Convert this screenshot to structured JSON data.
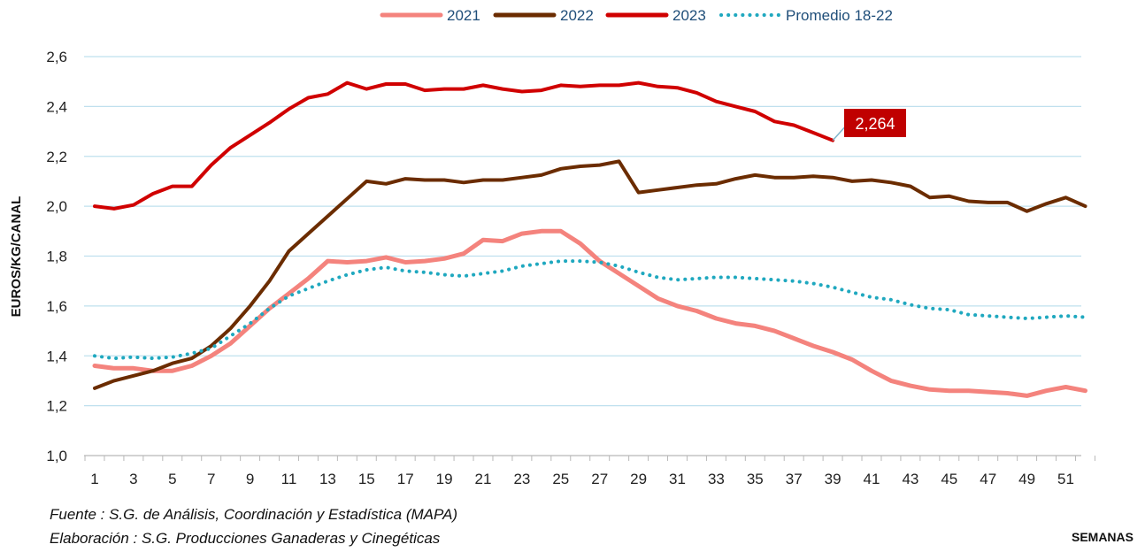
{
  "chart_data": {
    "type": "line",
    "xlabel": "SEMANAS",
    "ylabel": "EUROS/KG/CANAL",
    "ylim": [
      1.0,
      2.6
    ],
    "xlim": [
      1,
      52
    ],
    "yticks": [
      1.0,
      1.2,
      1.4,
      1.6,
      1.8,
      2.0,
      2.2,
      2.4,
      2.6
    ],
    "ytick_labels": [
      "1,0",
      "1,2",
      "1,4",
      "1,6",
      "1,8",
      "2,0",
      "2,2",
      "2,4",
      "2,6"
    ],
    "xticks": [
      1,
      3,
      5,
      7,
      9,
      11,
      13,
      15,
      17,
      19,
      21,
      23,
      25,
      27,
      29,
      31,
      33,
      35,
      37,
      39,
      41,
      43,
      45,
      47,
      49,
      51
    ],
    "grid": "horizontal",
    "legend_position": "top",
    "series": [
      {
        "name": "2021",
        "color": "#f4837d",
        "style": "solid",
        "x": [
          1,
          2,
          3,
          4,
          5,
          6,
          7,
          8,
          9,
          10,
          11,
          12,
          13,
          14,
          15,
          16,
          17,
          18,
          19,
          20,
          21,
          22,
          23,
          24,
          25,
          26,
          27,
          28,
          29,
          30,
          31,
          32,
          33,
          34,
          35,
          36,
          37,
          38,
          39,
          40,
          41,
          42,
          43,
          44,
          45,
          46,
          47,
          48,
          49,
          50,
          51,
          52
        ],
        "values": [
          1.36,
          1.35,
          1.35,
          1.34,
          1.34,
          1.36,
          1.4,
          1.45,
          1.52,
          1.59,
          1.65,
          1.71,
          1.78,
          1.775,
          1.78,
          1.795,
          1.775,
          1.78,
          1.79,
          1.81,
          1.865,
          1.86,
          1.89,
          1.9,
          1.9,
          1.85,
          1.78,
          1.73,
          1.68,
          1.63,
          1.6,
          1.58,
          1.55,
          1.53,
          1.52,
          1.5,
          1.47,
          1.44,
          1.415,
          1.385,
          1.34,
          1.3,
          1.28,
          1.265,
          1.26,
          1.26,
          1.255,
          1.25,
          1.24,
          1.26,
          1.275,
          1.26
        ]
      },
      {
        "name": "2022",
        "color": "#6b2c00",
        "style": "solid",
        "x": [
          1,
          2,
          3,
          4,
          5,
          6,
          7,
          8,
          9,
          10,
          11,
          12,
          13,
          14,
          15,
          16,
          17,
          18,
          19,
          20,
          21,
          22,
          23,
          24,
          25,
          26,
          27,
          28,
          29,
          30,
          31,
          32,
          33,
          34,
          35,
          36,
          37,
          38,
          39,
          40,
          41,
          42,
          43,
          44,
          45,
          46,
          47,
          48,
          49,
          50,
          51,
          52
        ],
        "values": [
          1.27,
          1.3,
          1.32,
          1.34,
          1.37,
          1.39,
          1.44,
          1.51,
          1.6,
          1.7,
          1.82,
          1.89,
          1.96,
          2.03,
          2.1,
          2.09,
          2.11,
          2.105,
          2.105,
          2.095,
          2.105,
          2.105,
          2.115,
          2.125,
          2.15,
          2.16,
          2.165,
          2.18,
          2.055,
          2.065,
          2.075,
          2.085,
          2.09,
          2.11,
          2.125,
          2.115,
          2.115,
          2.12,
          2.115,
          2.1,
          2.105,
          2.095,
          2.08,
          2.035,
          2.04,
          2.02,
          2.015,
          2.015,
          1.98,
          2.01,
          2.035,
          2.0
        ]
      },
      {
        "name": "2023",
        "color": "#d00000",
        "style": "solid",
        "x": [
          1,
          2,
          3,
          4,
          5,
          6,
          7,
          8,
          9,
          10,
          11,
          12,
          13,
          14,
          15,
          16,
          17,
          18,
          19,
          20,
          21,
          22,
          23,
          24,
          25,
          26,
          27,
          28,
          29,
          30,
          31,
          32,
          33,
          34,
          35,
          36,
          37,
          38,
          39
        ],
        "values": [
          2.0,
          1.99,
          2.005,
          2.05,
          2.08,
          2.08,
          2.165,
          2.235,
          2.285,
          2.335,
          2.39,
          2.435,
          2.45,
          2.495,
          2.47,
          2.49,
          2.49,
          2.465,
          2.47,
          2.47,
          2.485,
          2.47,
          2.46,
          2.465,
          2.485,
          2.48,
          2.485,
          2.485,
          2.495,
          2.48,
          2.475,
          2.455,
          2.42,
          2.4,
          2.38,
          2.34,
          2.325,
          2.295,
          2.264
        ]
      },
      {
        "name": "Promedio 18-22",
        "color": "#1fa8bf",
        "style": "dotted",
        "x": [
          1,
          2,
          3,
          4,
          5,
          6,
          7,
          8,
          9,
          10,
          11,
          12,
          13,
          14,
          15,
          16,
          17,
          18,
          19,
          20,
          21,
          22,
          23,
          24,
          25,
          26,
          27,
          28,
          29,
          30,
          31,
          32,
          33,
          34,
          35,
          36,
          37,
          38,
          39,
          40,
          41,
          42,
          43,
          44,
          45,
          46,
          47,
          48,
          49,
          50,
          51,
          52
        ],
        "values": [
          1.4,
          1.39,
          1.395,
          1.39,
          1.395,
          1.41,
          1.43,
          1.48,
          1.53,
          1.59,
          1.64,
          1.67,
          1.7,
          1.725,
          1.745,
          1.755,
          1.74,
          1.735,
          1.725,
          1.72,
          1.73,
          1.74,
          1.76,
          1.77,
          1.78,
          1.78,
          1.775,
          1.76,
          1.735,
          1.715,
          1.705,
          1.71,
          1.715,
          1.715,
          1.71,
          1.705,
          1.7,
          1.69,
          1.675,
          1.655,
          1.635,
          1.625,
          1.605,
          1.59,
          1.585,
          1.565,
          1.56,
          1.555,
          1.55,
          1.555,
          1.56,
          1.555
        ]
      }
    ],
    "annotation": {
      "label": "2,264",
      "series": "2023",
      "x": 39,
      "y": 2.264,
      "bg": "#c00000"
    }
  },
  "footer": {
    "source_line": "Fuente :  S.G. de Análisis, Coordinación y Estadística (MAPA)",
    "elaboration_line": "Elaboración : S.G. Producciones Ganaderas y Cinegéticas"
  }
}
